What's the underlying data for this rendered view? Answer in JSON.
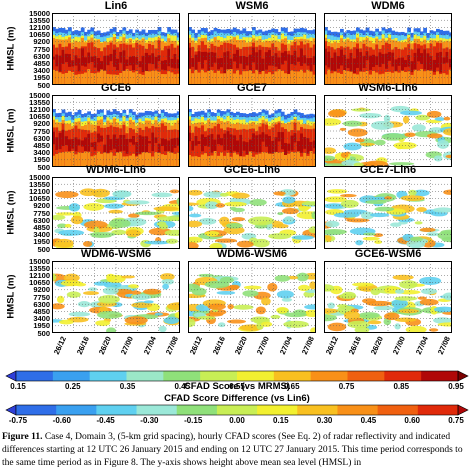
{
  "figure": {
    "panels": [
      {
        "title": "Lin6",
        "kind": "cfad"
      },
      {
        "title": "WSM6",
        "kind": "cfad"
      },
      {
        "title": "WDM6",
        "kind": "cfad"
      },
      {
        "title": "GCE6",
        "kind": "cfad"
      },
      {
        "title": "GCE7",
        "kind": "cfad"
      },
      {
        "title": "WSM6-Lin6",
        "kind": "diff"
      },
      {
        "title": "WDM6-Lin6",
        "kind": "diff"
      },
      {
        "title": "GCE6-Lin6",
        "kind": "diff"
      },
      {
        "title": "GCE7-Lin6",
        "kind": "diff"
      },
      {
        "title": "WDM6-WSM6",
        "kind": "diff"
      },
      {
        "title": "WDM6-WSM6",
        "kind": "diff"
      },
      {
        "title": "GCE6-WSM6",
        "kind": "diff"
      }
    ],
    "y_label": "HMSL (m)",
    "y_ticks": [
      "15000",
      "13550",
      "12100",
      "10650",
      "9200",
      "7750",
      "6300",
      "4850",
      "3400",
      "1950",
      "500"
    ],
    "x_ticks": [
      "26/12",
      "26/16",
      "26/20",
      "27/00",
      "27/04",
      "27/08"
    ],
    "colorbar1": {
      "label": "CFAD Score (vs MRMS)",
      "ticks": [
        "0.15",
        "0.25",
        "0.35",
        "0.45",
        "0.55",
        "0.65",
        "0.75",
        "0.85",
        "0.95"
      ],
      "colors": [
        "#2f3fd8",
        "#2f6ee8",
        "#3aa0f0",
        "#5fd0f0",
        "#9be8c8",
        "#8fe07a",
        "#c8ee55",
        "#f2f030",
        "#f8c020",
        "#f89018",
        "#f06010",
        "#e02a0a",
        "#b00808",
        "#7a0000"
      ]
    },
    "colorbar2": {
      "label": "CFAD Score Difference (vs Lin6)",
      "ticks": [
        "-0.75",
        "-0.60",
        "-0.45",
        "-0.30",
        "-0.15",
        "0.00",
        "0.15",
        "0.30",
        "0.45",
        "0.60",
        "0.75"
      ],
      "colors": [
        "#2f3fd8",
        "#2f6ee8",
        "#3aa0f0",
        "#5fd0f0",
        "#9be8d8",
        "#8fe07a",
        "#c8ee55",
        "#f2f030",
        "#f8c020",
        "#f89018",
        "#f06010",
        "#e02a0a",
        "#b00808"
      ]
    }
  },
  "caption": {
    "label": "Figure 11.",
    "text": " Case 4, Domain 3, (5-km grid spacing), hourly CFAD scores (See Eq. 2) of radar reflectivity and indicated differences starting at 12 UTC 26 January 2015 and ending on 12 UTC 27 January 2015. This time period corresponds to the same time period as in Figure 8. The y-axis shows height above mean sea level (HMSL) in"
  }
}
